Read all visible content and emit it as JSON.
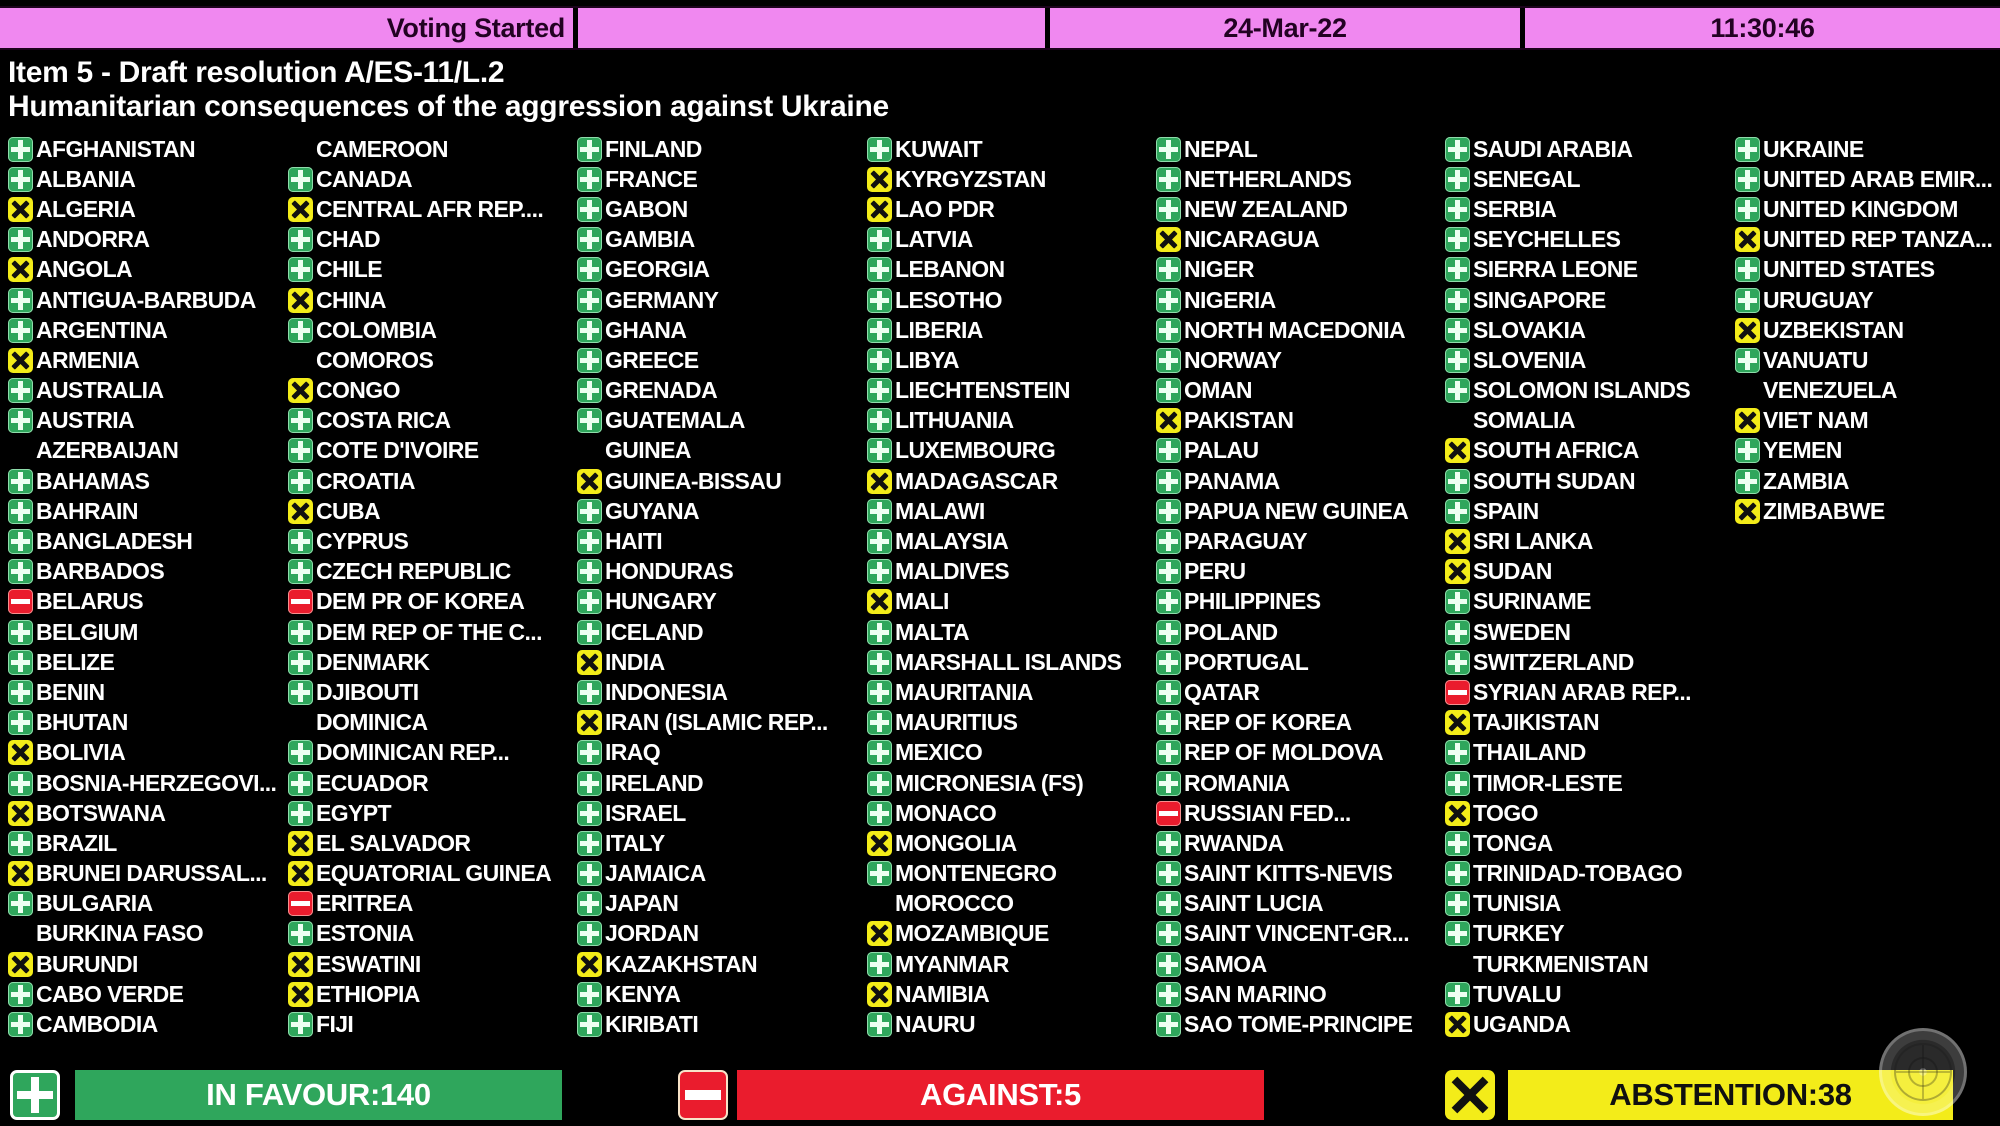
{
  "header": {
    "status": "Voting Started",
    "date": "24-Mar-22",
    "time": "11:30:46"
  },
  "title": "Item 5 - Draft resolution A/ES-11/L.2",
  "subtitle": "Humanitarian consequences of the aggression against Ukraine",
  "vote_legend": {
    "Y": "in favour (green plus-icon)",
    "N": "against (red minus-icon)",
    "A": "abstention (yellow x-icon)",
    "-": "not voting (blank)"
  },
  "colors": {
    "favour": "#2fa65c",
    "against": "#ea1c2d",
    "abstain": "#f3ec19",
    "hdr": "#f088f0"
  },
  "summary": {
    "in_favour": "IN FAVOUR:140",
    "against": "AGAINST:5",
    "abstention": "ABSTENTION:38"
  },
  "columns": [
    [
      [
        "AFGHANISTAN",
        "Y"
      ],
      [
        "ALBANIA",
        "Y"
      ],
      [
        "ALGERIA",
        "A"
      ],
      [
        "ANDORRA",
        "Y"
      ],
      [
        "ANGOLA",
        "A"
      ],
      [
        "ANTIGUA-BARBUDA",
        "Y"
      ],
      [
        "ARGENTINA",
        "Y"
      ],
      [
        "ARMENIA",
        "A"
      ],
      [
        "AUSTRALIA",
        "Y"
      ],
      [
        "AUSTRIA",
        "Y"
      ],
      [
        "AZERBAIJAN",
        "-"
      ],
      [
        "BAHAMAS",
        "Y"
      ],
      [
        "BAHRAIN",
        "Y"
      ],
      [
        "BANGLADESH",
        "Y"
      ],
      [
        "BARBADOS",
        "Y"
      ],
      [
        "BELARUS",
        "N"
      ],
      [
        "BELGIUM",
        "Y"
      ],
      [
        "BELIZE",
        "Y"
      ],
      [
        "BENIN",
        "Y"
      ],
      [
        "BHUTAN",
        "Y"
      ],
      [
        "BOLIVIA",
        "A"
      ],
      [
        "BOSNIA-HERZEGOVI...",
        "Y"
      ],
      [
        "BOTSWANA",
        "A"
      ],
      [
        "BRAZIL",
        "Y"
      ],
      [
        "BRUNEI DARUSSAL...",
        "A"
      ],
      [
        "BULGARIA",
        "Y"
      ],
      [
        "BURKINA FASO",
        "-"
      ],
      [
        "BURUNDI",
        "A"
      ],
      [
        "CABO VERDE",
        "Y"
      ],
      [
        "CAMBODIA",
        "Y"
      ]
    ],
    [
      [
        "CAMEROON",
        "-"
      ],
      [
        "CANADA",
        "Y"
      ],
      [
        "CENTRAL AFR REP....",
        "A"
      ],
      [
        "CHAD",
        "Y"
      ],
      [
        "CHILE",
        "Y"
      ],
      [
        "CHINA",
        "A"
      ],
      [
        "COLOMBIA",
        "Y"
      ],
      [
        "COMOROS",
        "-"
      ],
      [
        "CONGO",
        "A"
      ],
      [
        "COSTA RICA",
        "Y"
      ],
      [
        "COTE D'IVOIRE",
        "Y"
      ],
      [
        "CROATIA",
        "Y"
      ],
      [
        "CUBA",
        "A"
      ],
      [
        "CYPRUS",
        "Y"
      ],
      [
        "CZECH REPUBLIC",
        "Y"
      ],
      [
        "DEM PR OF KOREA",
        "N"
      ],
      [
        "DEM REP OF THE C...",
        "Y"
      ],
      [
        "DENMARK",
        "Y"
      ],
      [
        "DJIBOUTI",
        "Y"
      ],
      [
        "DOMINICA",
        "-"
      ],
      [
        "DOMINICAN REP...",
        "Y"
      ],
      [
        "ECUADOR",
        "Y"
      ],
      [
        "EGYPT",
        "Y"
      ],
      [
        "EL SALVADOR",
        "A"
      ],
      [
        "EQUATORIAL GUINEA",
        "A"
      ],
      [
        "ERITREA",
        "N"
      ],
      [
        "ESTONIA",
        "Y"
      ],
      [
        "ESWATINI",
        "A"
      ],
      [
        "ETHIOPIA",
        "A"
      ],
      [
        "FIJI",
        "Y"
      ]
    ],
    [
      [
        "FINLAND",
        "Y"
      ],
      [
        "FRANCE",
        "Y"
      ],
      [
        "GABON",
        "Y"
      ],
      [
        "GAMBIA",
        "Y"
      ],
      [
        "GEORGIA",
        "Y"
      ],
      [
        "GERMANY",
        "Y"
      ],
      [
        "GHANA",
        "Y"
      ],
      [
        "GREECE",
        "Y"
      ],
      [
        "GRENADA",
        "Y"
      ],
      [
        "GUATEMALA",
        "Y"
      ],
      [
        "GUINEA",
        "-"
      ],
      [
        "GUINEA-BISSAU",
        "A"
      ],
      [
        "GUYANA",
        "Y"
      ],
      [
        "HAITI",
        "Y"
      ],
      [
        "HONDURAS",
        "Y"
      ],
      [
        "HUNGARY",
        "Y"
      ],
      [
        "ICELAND",
        "Y"
      ],
      [
        "INDIA",
        "A"
      ],
      [
        "INDONESIA",
        "Y"
      ],
      [
        "IRAN (ISLAMIC REP...",
        "A"
      ],
      [
        "IRAQ",
        "Y"
      ],
      [
        "IRELAND",
        "Y"
      ],
      [
        "ISRAEL",
        "Y"
      ],
      [
        "ITALY",
        "Y"
      ],
      [
        "JAMAICA",
        "Y"
      ],
      [
        "JAPAN",
        "Y"
      ],
      [
        "JORDAN",
        "Y"
      ],
      [
        "KAZAKHSTAN",
        "A"
      ],
      [
        "KENYA",
        "Y"
      ],
      [
        "KIRIBATI",
        "Y"
      ]
    ],
    [
      [
        "KUWAIT",
        "Y"
      ],
      [
        "KYRGYZSTAN",
        "A"
      ],
      [
        "LAO PDR",
        "A"
      ],
      [
        "LATVIA",
        "Y"
      ],
      [
        "LEBANON",
        "Y"
      ],
      [
        "LESOTHO",
        "Y"
      ],
      [
        "LIBERIA",
        "Y"
      ],
      [
        "LIBYA",
        "Y"
      ],
      [
        "LIECHTENSTEIN",
        "Y"
      ],
      [
        "LITHUANIA",
        "Y"
      ],
      [
        "LUXEMBOURG",
        "Y"
      ],
      [
        "MADAGASCAR",
        "A"
      ],
      [
        "MALAWI",
        "Y"
      ],
      [
        "MALAYSIA",
        "Y"
      ],
      [
        "MALDIVES",
        "Y"
      ],
      [
        "MALI",
        "A"
      ],
      [
        "MALTA",
        "Y"
      ],
      [
        "MARSHALL ISLANDS",
        "Y"
      ],
      [
        "MAURITANIA",
        "Y"
      ],
      [
        "MAURITIUS",
        "Y"
      ],
      [
        "MEXICO",
        "Y"
      ],
      [
        "MICRONESIA (FS)",
        "Y"
      ],
      [
        "MONACO",
        "Y"
      ],
      [
        "MONGOLIA",
        "A"
      ],
      [
        "MONTENEGRO",
        "Y"
      ],
      [
        "MOROCCO",
        "-"
      ],
      [
        "MOZAMBIQUE",
        "A"
      ],
      [
        "MYANMAR",
        "Y"
      ],
      [
        "NAMIBIA",
        "A"
      ],
      [
        "NAURU",
        "Y"
      ]
    ],
    [
      [
        "NEPAL",
        "Y"
      ],
      [
        "NETHERLANDS",
        "Y"
      ],
      [
        "NEW ZEALAND",
        "Y"
      ],
      [
        "NICARAGUA",
        "A"
      ],
      [
        "NIGER",
        "Y"
      ],
      [
        "NIGERIA",
        "Y"
      ],
      [
        "NORTH MACEDONIA",
        "Y"
      ],
      [
        "NORWAY",
        "Y"
      ],
      [
        "OMAN",
        "Y"
      ],
      [
        "PAKISTAN",
        "A"
      ],
      [
        "PALAU",
        "Y"
      ],
      [
        "PANAMA",
        "Y"
      ],
      [
        "PAPUA NEW GUINEA",
        "Y"
      ],
      [
        "PARAGUAY",
        "Y"
      ],
      [
        "PERU",
        "Y"
      ],
      [
        "PHILIPPINES",
        "Y"
      ],
      [
        "POLAND",
        "Y"
      ],
      [
        "PORTUGAL",
        "Y"
      ],
      [
        "QATAR",
        "Y"
      ],
      [
        "REP OF KOREA",
        "Y"
      ],
      [
        "REP OF MOLDOVA",
        "Y"
      ],
      [
        "ROMANIA",
        "Y"
      ],
      [
        "RUSSIAN FED...",
        "N"
      ],
      [
        "RWANDA",
        "Y"
      ],
      [
        "SAINT KITTS-NEVIS",
        "Y"
      ],
      [
        "SAINT LUCIA",
        "Y"
      ],
      [
        "SAINT VINCENT-GR...",
        "Y"
      ],
      [
        "SAMOA",
        "Y"
      ],
      [
        "SAN MARINO",
        "Y"
      ],
      [
        "SAO TOME-PRINCIPE",
        "Y"
      ]
    ],
    [
      [
        "SAUDI ARABIA",
        "Y"
      ],
      [
        "SENEGAL",
        "Y"
      ],
      [
        "SERBIA",
        "Y"
      ],
      [
        "SEYCHELLES",
        "Y"
      ],
      [
        "SIERRA LEONE",
        "Y"
      ],
      [
        "SINGAPORE",
        "Y"
      ],
      [
        "SLOVAKIA",
        "Y"
      ],
      [
        "SLOVENIA",
        "Y"
      ],
      [
        "SOLOMON ISLANDS",
        "Y"
      ],
      [
        "SOMALIA",
        "-"
      ],
      [
        "SOUTH AFRICA",
        "A"
      ],
      [
        "SOUTH SUDAN",
        "Y"
      ],
      [
        "SPAIN",
        "Y"
      ],
      [
        "SRI LANKA",
        "A"
      ],
      [
        "SUDAN",
        "A"
      ],
      [
        "SURINAME",
        "Y"
      ],
      [
        "SWEDEN",
        "Y"
      ],
      [
        "SWITZERLAND",
        "Y"
      ],
      [
        "SYRIAN ARAB REP...",
        "N"
      ],
      [
        "TAJIKISTAN",
        "A"
      ],
      [
        "THAILAND",
        "Y"
      ],
      [
        "TIMOR-LESTE",
        "Y"
      ],
      [
        "TOGO",
        "A"
      ],
      [
        "TONGA",
        "Y"
      ],
      [
        "TRINIDAD-TOBAGO",
        "Y"
      ],
      [
        "TUNISIA",
        "Y"
      ],
      [
        "TURKEY",
        "Y"
      ],
      [
        "TURKMENISTAN",
        "-"
      ],
      [
        "TUVALU",
        "Y"
      ],
      [
        "UGANDA",
        "A"
      ]
    ],
    [
      [
        "UKRAINE",
        "Y"
      ],
      [
        "UNITED ARAB EMIR...",
        "Y"
      ],
      [
        "UNITED KINGDOM",
        "Y"
      ],
      [
        "UNITED REP TANZA...",
        "A"
      ],
      [
        "UNITED STATES",
        "Y"
      ],
      [
        "URUGUAY",
        "Y"
      ],
      [
        "UZBEKISTAN",
        "A"
      ],
      [
        "VANUATU",
        "Y"
      ],
      [
        "VENEZUELA",
        "-"
      ],
      [
        "VIET NAM",
        "A"
      ],
      [
        "YEMEN",
        "Y"
      ],
      [
        "ZAMBIA",
        "Y"
      ],
      [
        "ZIMBABWE",
        "A"
      ]
    ]
  ]
}
